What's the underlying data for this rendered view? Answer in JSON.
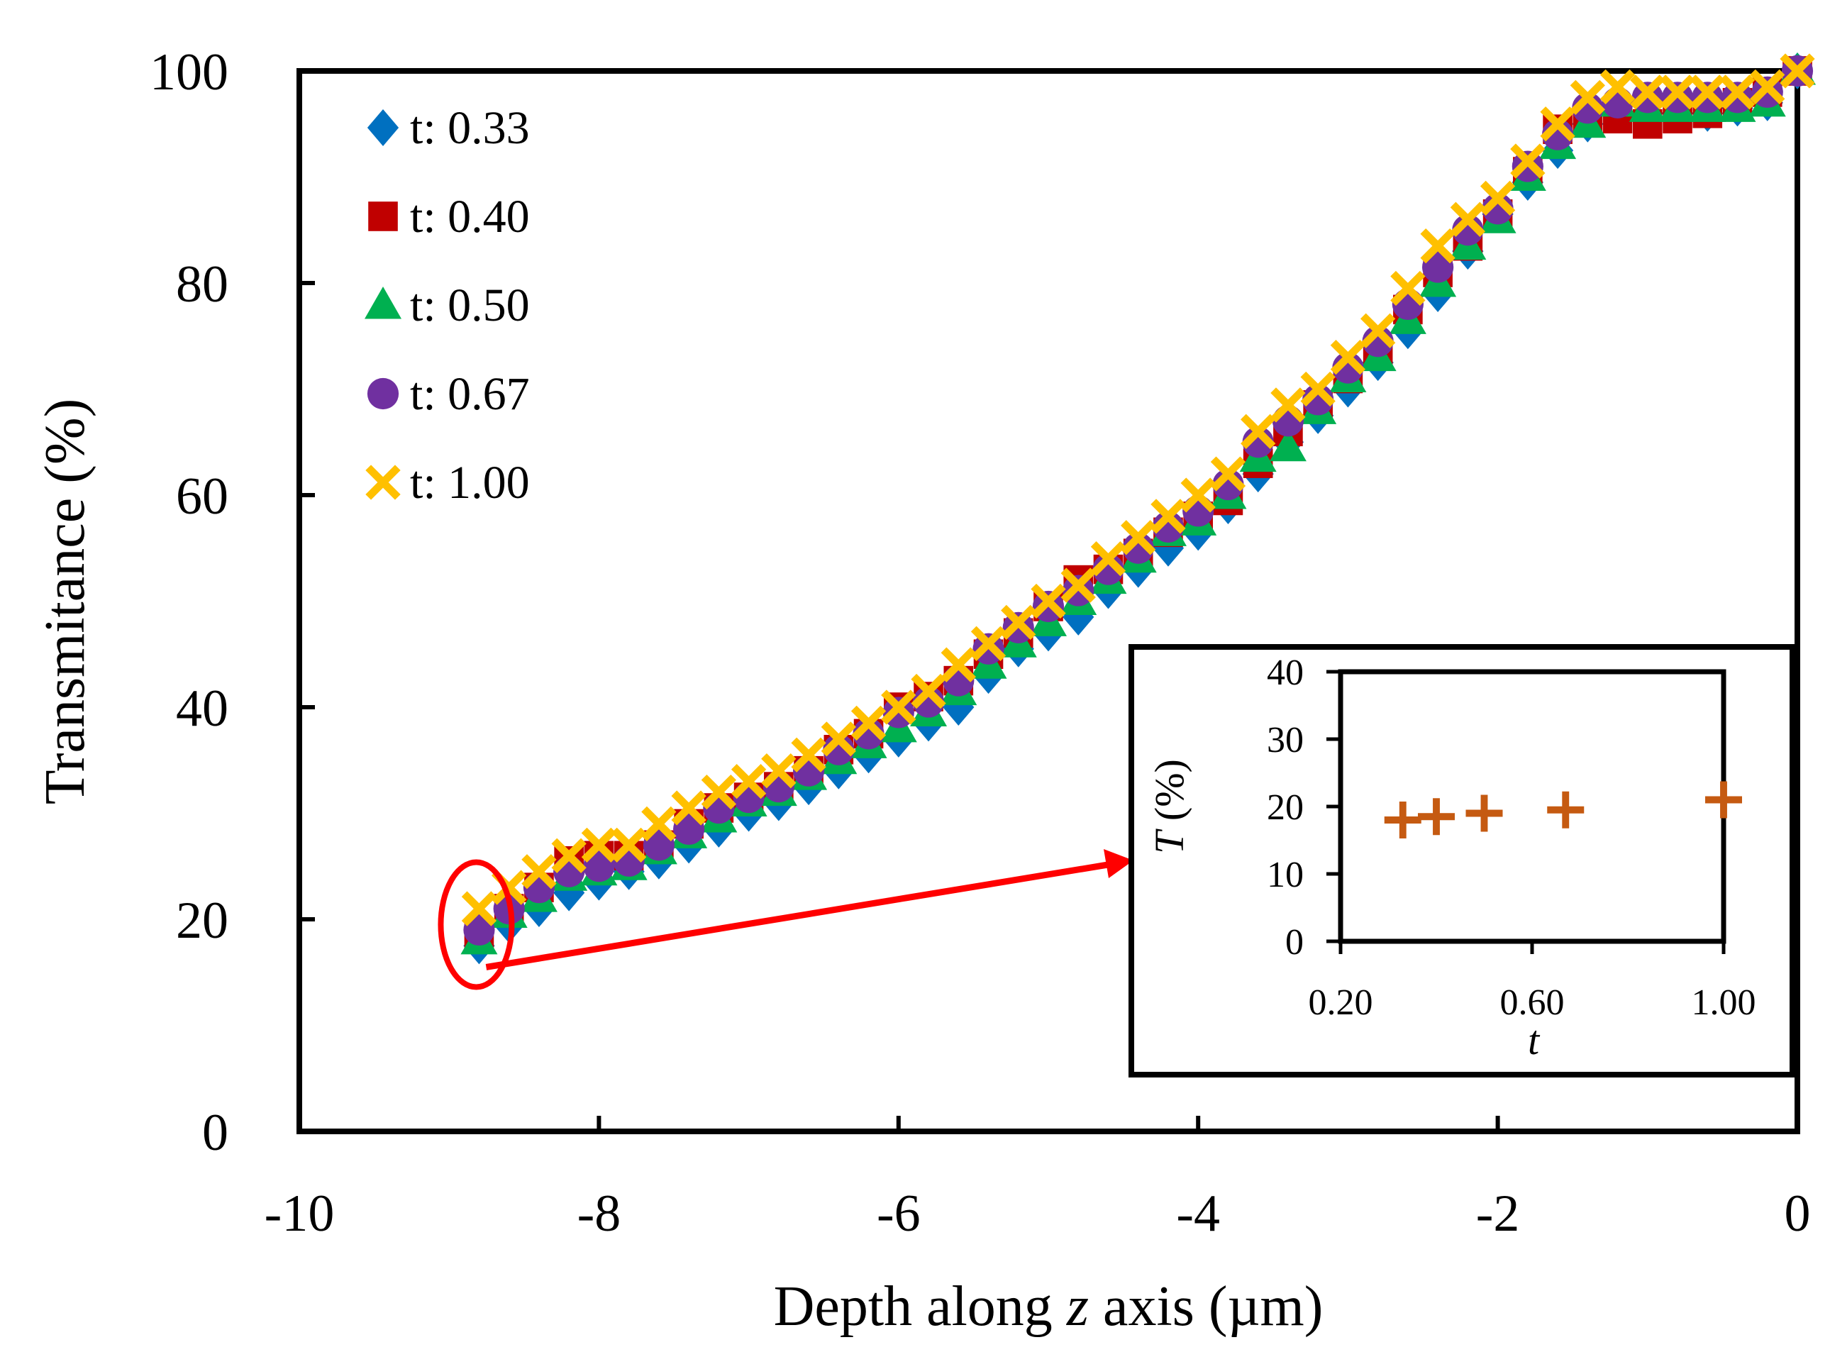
{
  "chart_data": [
    {
      "type": "scatter",
      "title": "",
      "xlabel_parts": [
        "Depth along ",
        "z",
        " axis (µm)"
      ],
      "ylabel": "Transmitance (%)",
      "xlim": [
        -10,
        0
      ],
      "ylim": [
        0,
        100
      ],
      "xticks": [
        -10,
        -8,
        -6,
        -4,
        -2,
        0
      ],
      "yticks": [
        0,
        20,
        40,
        60,
        80,
        100
      ],
      "xtick_labels": [
        "-10",
        "-8",
        "-6",
        "-4",
        "-2",
        "0"
      ],
      "ytick_labels": [
        "0",
        "20",
        "40",
        "60",
        "80",
        "100"
      ],
      "legend_position": "top-left",
      "x": [
        -8.8,
        -8.6,
        -8.4,
        -8.2,
        -8.0,
        -7.8,
        -7.6,
        -7.4,
        -7.2,
        -7.0,
        -6.8,
        -6.6,
        -6.4,
        -6.2,
        -6.0,
        -5.8,
        -5.6,
        -5.4,
        -5.2,
        -5.0,
        -4.8,
        -4.6,
        -4.4,
        -4.2,
        -4.0,
        -3.8,
        -3.6,
        -3.4,
        -3.2,
        -3.0,
        -2.8,
        -2.6,
        -2.4,
        -2.2,
        -2.0,
        -1.8,
        -1.6,
        -1.4,
        -1.2,
        -1.0,
        -0.8,
        -0.6,
        -0.4,
        -0.2,
        0.0
      ],
      "series": [
        {
          "name": "t: 0.33",
          "marker": "diamond",
          "color": "#0070C0",
          "values": [
            17.5,
            19.5,
            21.0,
            22.5,
            23.5,
            24.5,
            25.5,
            27.0,
            28.5,
            30.0,
            31.0,
            32.5,
            34.0,
            35.5,
            37.0,
            38.5,
            40.0,
            43.0,
            45.5,
            47.0,
            48.5,
            51.0,
            53.0,
            55.0,
            56.5,
            59.0,
            62.0,
            65.0,
            67.5,
            70.0,
            72.5,
            75.5,
            79.0,
            83.0,
            86.5,
            89.5,
            92.5,
            95.0,
            96.0,
            96.0,
            96.0,
            96.0,
            96.5,
            97.0,
            100.0
          ]
        },
        {
          "name": "t: 0.40",
          "marker": "square",
          "color": "#C00000",
          "values": [
            18.5,
            21.0,
            23.0,
            25.5,
            26.0,
            26.0,
            27.0,
            29.0,
            30.5,
            31.5,
            32.5,
            34.0,
            36.0,
            37.5,
            40.0,
            41.0,
            42.5,
            45.0,
            47.0,
            49.5,
            52.0,
            53.0,
            54.5,
            56.5,
            58.0,
            59.5,
            63.0,
            66.0,
            68.5,
            71.0,
            73.5,
            77.5,
            81.0,
            83.5,
            86.5,
            90.5,
            94.5,
            95.5,
            95.5,
            95.0,
            95.5,
            96.0,
            97.0,
            98.0,
            100.0
          ]
        },
        {
          "name": "t: 0.50",
          "marker": "triangle",
          "color": "#00B050",
          "values": [
            18.0,
            20.5,
            22.0,
            24.0,
            24.5,
            25.0,
            26.5,
            28.0,
            29.5,
            31.0,
            32.0,
            33.5,
            35.0,
            36.5,
            38.0,
            39.5,
            41.5,
            44.0,
            46.0,
            48.0,
            50.0,
            52.0,
            54.0,
            56.5,
            57.5,
            60.0,
            63.5,
            64.5,
            68.0,
            71.0,
            73.0,
            76.5,
            80.0,
            83.5,
            86.0,
            90.0,
            93.0,
            95.0,
            97.0,
            96.5,
            96.5,
            96.5,
            96.5,
            97.0,
            100.0
          ]
        },
        {
          "name": "t: 0.67",
          "marker": "circle",
          "color": "#7030A0",
          "values": [
            19.0,
            21.0,
            23.0,
            24.5,
            25.0,
            25.5,
            27.0,
            28.5,
            30.5,
            31.5,
            32.5,
            34.0,
            36.0,
            37.5,
            39.5,
            40.5,
            42.5,
            45.5,
            47.5,
            49.5,
            51.0,
            53.0,
            55.0,
            57.0,
            58.5,
            61.0,
            65.0,
            67.0,
            69.0,
            72.0,
            74.5,
            78.0,
            81.5,
            85.0,
            87.0,
            91.0,
            94.0,
            96.5,
            97.0,
            97.5,
            97.5,
            97.5,
            97.5,
            98.0,
            100.0
          ]
        },
        {
          "name": "t: 1.00",
          "marker": "x",
          "color": "#FFC000",
          "values": [
            21.0,
            23.0,
            24.5,
            26.0,
            27.0,
            27.0,
            29.0,
            30.5,
            32.0,
            33.0,
            34.0,
            35.5,
            37.0,
            38.5,
            40.0,
            41.5,
            44.0,
            46.0,
            48.0,
            50.0,
            51.5,
            54.0,
            56.0,
            58.0,
            60.0,
            62.0,
            66.0,
            68.5,
            70.0,
            73.0,
            75.5,
            79.5,
            83.5,
            86.0,
            88.0,
            91.5,
            95.0,
            97.5,
            98.5,
            98.0,
            98.0,
            98.0,
            98.0,
            98.5,
            100.0
          ]
        }
      ],
      "highlight": {
        "x": -8.8,
        "y": 19.5,
        "color": "#FF0000"
      }
    },
    {
      "type": "scatter",
      "title": "",
      "xlabel": "t",
      "ylabel_parts": [
        "T",
        " (%)"
      ],
      "xlim": [
        0.2,
        1.0
      ],
      "ylim": [
        0,
        40
      ],
      "xticks": [
        0.2,
        0.6,
        1.0
      ],
      "yticks": [
        0,
        10,
        20,
        30,
        40
      ],
      "xtick_labels": [
        "0.20",
        "0.60",
        "1.00"
      ],
      "ytick_labels": [
        "0",
        "10",
        "20",
        "30",
        "40"
      ],
      "marker": "plus",
      "color": "#C55A11",
      "x": [
        0.33,
        0.4,
        0.5,
        0.67,
        1.0
      ],
      "y": [
        18.0,
        18.5,
        19.0,
        19.5,
        21.0
      ]
    }
  ]
}
